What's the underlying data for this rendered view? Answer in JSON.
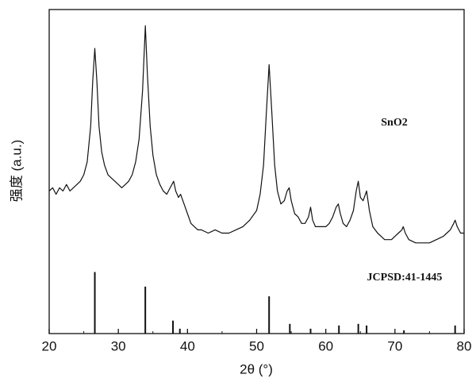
{
  "chart_data": {
    "type": "line",
    "x_label": "2θ (°)",
    "y_label": "强度 (a.u.)",
    "annotations": [
      "SnO2",
      "JCPSD:41-1445"
    ],
    "xlim": [
      20,
      80
    ],
    "xticks": [
      20,
      30,
      40,
      50,
      60,
      70,
      80
    ],
    "xminorticks": [
      25,
      35,
      45,
      55,
      65,
      75
    ],
    "ylim": [
      0,
      100
    ],
    "series": [
      {
        "kind": "line",
        "color": "#111111",
        "x": [
          20,
          20.5,
          21,
          21.5,
          22,
          22.5,
          23,
          23.5,
          24,
          24.5,
          25,
          25.5,
          26,
          26.3,
          26.6,
          26.9,
          27.2,
          27.6,
          28,
          28.5,
          29,
          29.5,
          30,
          30.5,
          31,
          31.5,
          32,
          32.5,
          33,
          33.5,
          33.9,
          34.2,
          34.6,
          35,
          35.5,
          36,
          36.5,
          37,
          37.5,
          38,
          38.3,
          38.7,
          39,
          39.5,
          40,
          40.5,
          41,
          41.5,
          42,
          43,
          44,
          45,
          46,
          47,
          48,
          49,
          50,
          50.5,
          51,
          51.4,
          51.8,
          52.2,
          52.6,
          53,
          53.5,
          54,
          54.4,
          54.7,
          55,
          55.5,
          56,
          56.5,
          57,
          57.5,
          57.8,
          58.1,
          58.5,
          59,
          60,
          60.5,
          61,
          61.5,
          61.8,
          62.1,
          62.5,
          63,
          63.5,
          64,
          64.4,
          64.7,
          65,
          65.4,
          65.9,
          66.3,
          66.8,
          67.5,
          68,
          68.5,
          69,
          69.5,
          70,
          70.5,
          71,
          71.2,
          71.5,
          72,
          73,
          74,
          75,
          76,
          77,
          77.5,
          78,
          78.5,
          78.7,
          79,
          79.5,
          80
        ],
        "values": [
          44,
          45,
          43,
          45,
          44,
          46,
          44,
          45,
          46,
          47,
          49,
          53,
          64,
          78,
          88,
          78,
          64,
          56,
          52,
          49,
          48,
          47,
          46,
          45,
          46,
          47,
          49,
          53,
          60,
          75,
          95,
          80,
          64,
          55,
          49,
          46,
          44,
          43,
          45,
          47,
          44,
          42,
          43,
          40,
          37,
          34,
          33,
          32,
          32,
          31,
          32,
          31,
          31,
          32,
          33,
          35,
          38,
          43,
          52,
          68,
          83,
          68,
          52,
          44,
          40,
          41,
          44,
          45,
          41,
          37,
          36,
          34,
          34,
          36,
          39,
          35,
          33,
          33,
          33,
          34,
          36,
          39,
          40,
          37,
          34,
          33,
          35,
          38,
          44,
          47,
          42,
          41,
          44,
          38,
          33,
          31,
          30,
          29,
          29,
          29,
          30,
          31,
          32,
          33,
          31,
          29,
          28,
          28,
          28,
          29,
          30,
          31,
          32,
          34,
          35,
          33,
          31,
          31
        ]
      },
      {
        "kind": "stem",
        "color": "#111111",
        "x": [
          26.6,
          33.9,
          37.9,
          38.9,
          51.8,
          54.8,
          57.8,
          61.9,
          64.7,
          65.9,
          71.3,
          78.7
        ],
        "values": [
          19,
          14.5,
          4,
          1.5,
          11.5,
          3,
          1.5,
          2.5,
          3,
          2.5,
          1,
          2.5
        ]
      }
    ]
  }
}
